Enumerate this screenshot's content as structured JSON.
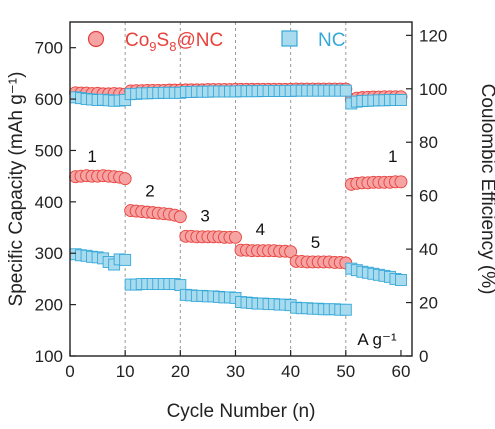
{
  "chart_data": {
    "type": "scatter",
    "xlabel": "Cycle Number (n)",
    "ylabel": "Specific Capacity (mAh g⁻¹)",
    "y2label": "Coulombic Efficiency (%)",
    "xlim": [
      0,
      62
    ],
    "ylim": [
      100,
      750
    ],
    "y2lim": [
      0,
      125
    ],
    "xticks": [
      0,
      10,
      20,
      30,
      40,
      50,
      60
    ],
    "yticks": [
      100,
      200,
      300,
      400,
      500,
      600,
      700
    ],
    "y2ticks": [
      0,
      20,
      40,
      60,
      80,
      100,
      120
    ],
    "vlines": [
      10,
      20,
      30,
      40,
      50
    ],
    "grid": false,
    "legend_position": "top",
    "rate_labels": [
      {
        "text": "1",
        "x": 4,
        "y": 478
      },
      {
        "text": "2",
        "x": 14.5,
        "y": 410
      },
      {
        "text": "3",
        "x": 24.5,
        "y": 362
      },
      {
        "text": "4",
        "x": 34.5,
        "y": 335
      },
      {
        "text": "5",
        "x": 44.5,
        "y": 310
      },
      {
        "text": "1",
        "x": 58.5,
        "y": 478
      }
    ],
    "unit_annotation": "A g⁻¹",
    "series": [
      {
        "name": "Co9S8@NC",
        "legend": {
          "main": "Co",
          "s1": "9",
          "mid": "S",
          "s2": "8",
          "end": "@NC"
        },
        "color": "#e8413c",
        "fill": "#f5a3a3",
        "marker": "circle",
        "axis": "left",
        "x": [
          1,
          2,
          3,
          4,
          5,
          6,
          7,
          8,
          9,
          10,
          11,
          12,
          13,
          14,
          15,
          16,
          17,
          18,
          19,
          20,
          21,
          22,
          23,
          24,
          25,
          26,
          27,
          28,
          29,
          30,
          31,
          32,
          33,
          34,
          35,
          36,
          37,
          38,
          39,
          40,
          41,
          42,
          43,
          44,
          45,
          46,
          47,
          48,
          49,
          50,
          51,
          52,
          53,
          54,
          55,
          56,
          57,
          58,
          59,
          60
        ],
        "y": [
          449,
          450,
          451,
          450,
          450,
          451,
          450,
          449,
          448,
          445,
          383,
          382,
          381,
          380,
          379,
          378,
          377,
          376,
          374,
          371,
          333,
          333,
          332,
          332,
          332,
          332,
          332,
          331,
          331,
          331,
          306,
          306,
          305,
          305,
          305,
          305,
          305,
          304,
          304,
          303,
          284,
          284,
          283,
          283,
          283,
          283,
          283,
          282,
          282,
          281,
          434,
          436,
          437,
          437,
          438,
          438,
          438,
          438,
          439,
          439
        ]
      },
      {
        "name": "NC",
        "color": "#36a8d8",
        "fill": "#a9dbef",
        "marker": "square",
        "axis": "left",
        "x": [
          1,
          2,
          3,
          4,
          5,
          6,
          7,
          8,
          9,
          10,
          11,
          12,
          13,
          14,
          15,
          16,
          17,
          18,
          19,
          20,
          21,
          22,
          23,
          24,
          25,
          26,
          27,
          28,
          29,
          30,
          31,
          32,
          33,
          34,
          35,
          36,
          37,
          38,
          39,
          40,
          41,
          42,
          43,
          44,
          45,
          46,
          47,
          48,
          49,
          50,
          51,
          52,
          53,
          54,
          55,
          56,
          57,
          58,
          59,
          60
        ],
        "y": [
          298,
          296,
          295,
          293,
          292,
          290,
          283,
          278,
          288,
          287,
          239,
          239,
          240,
          240,
          240,
          240,
          240,
          240,
          240,
          238,
          219,
          218,
          217,
          217,
          216,
          216,
          215,
          214,
          214,
          213,
          205,
          204,
          203,
          202,
          202,
          201,
          201,
          200,
          200,
          199,
          194,
          193,
          193,
          192,
          192,
          191,
          191,
          191,
          190,
          190,
          270,
          267,
          264,
          262,
          260,
          258,
          256,
          254,
          250,
          248
        ]
      },
      {
        "name": "Co9S8@NC Coulombic Efficiency",
        "color": "#e8413c",
        "fill": "#f5a3a3",
        "marker": "circle",
        "axis": "right",
        "x": [
          1,
          2,
          3,
          4,
          5,
          6,
          7,
          8,
          9,
          10,
          11,
          12,
          13,
          14,
          15,
          16,
          17,
          18,
          19,
          20,
          21,
          22,
          23,
          24,
          25,
          26,
          27,
          28,
          29,
          30,
          31,
          32,
          33,
          34,
          35,
          36,
          37,
          38,
          39,
          40,
          41,
          42,
          43,
          44,
          45,
          46,
          47,
          48,
          49,
          50,
          51,
          52,
          53,
          54,
          55,
          56,
          57,
          58,
          59,
          60
        ],
        "y": [
          98.5,
          98.4,
          98.4,
          98.2,
          98.3,
          98.1,
          98.1,
          98.2,
          98.1,
          98.0,
          99.2,
          99.3,
          99.3,
          99.4,
          99.4,
          99.4,
          99.4,
          99.5,
          99.5,
          99.5,
          99.6,
          99.6,
          99.6,
          99.6,
          99.7,
          99.7,
          99.7,
          99.7,
          99.7,
          99.8,
          99.8,
          99.8,
          99.8,
          99.8,
          99.8,
          99.8,
          99.8,
          99.8,
          99.8,
          99.8,
          99.9,
          99.9,
          99.9,
          99.9,
          99.9,
          99.9,
          99.9,
          99.9,
          99.9,
          99.9,
          96.0,
          96.5,
          96.7,
          96.8,
          96.9,
          96.9,
          97.0,
          97.0,
          97.0,
          97.0
        ]
      },
      {
        "name": "NC Coulombic Efficiency",
        "color": "#36a8d8",
        "fill": "#a9dbef",
        "marker": "square",
        "axis": "right",
        "x": [
          1,
          2,
          3,
          4,
          5,
          6,
          7,
          8,
          9,
          10,
          11,
          12,
          13,
          14,
          15,
          16,
          17,
          18,
          19,
          20,
          21,
          22,
          23,
          24,
          25,
          26,
          27,
          28,
          29,
          30,
          31,
          32,
          33,
          34,
          35,
          36,
          37,
          38,
          39,
          40,
          41,
          42,
          43,
          44,
          45,
          46,
          47,
          48,
          49,
          50,
          51,
          52,
          53,
          54,
          55,
          56,
          57,
          58,
          59,
          60
        ],
        "y": [
          96.8,
          96.5,
          96.2,
          96.0,
          95.8,
          95.9,
          95.7,
          95.5,
          95.6,
          95.8,
          98.0,
          98.1,
          98.3,
          98.3,
          98.4,
          98.4,
          98.5,
          98.5,
          98.5,
          98.5,
          98.8,
          98.8,
          98.9,
          98.9,
          98.9,
          99.0,
          99.0,
          99.0,
          99.0,
          99.0,
          99.1,
          99.1,
          99.1,
          99.1,
          99.2,
          99.2,
          99.2,
          99.2,
          99.2,
          99.2,
          99.3,
          99.3,
          99.3,
          99.3,
          99.3,
          99.3,
          99.3,
          99.3,
          99.3,
          99.3,
          94.5,
          95.2,
          95.4,
          95.5,
          95.6,
          95.7,
          95.7,
          95.8,
          95.8,
          95.8
        ]
      }
    ]
  }
}
